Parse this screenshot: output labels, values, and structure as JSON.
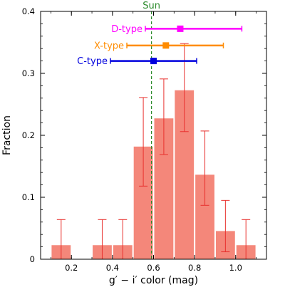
{
  "chart_data": {
    "type": "bar",
    "xlabel": "g′ − i′ color (mag)",
    "ylabel": "Fraction",
    "xlim": [
      0.05,
      1.15
    ],
    "ylim": [
      0,
      0.4
    ],
    "xticks": [
      0.2,
      0.4,
      0.6,
      0.8,
      1.0
    ],
    "xtick_labels": [
      "0.2",
      "0.4",
      "0.6",
      "0.8",
      "1.0"
    ],
    "yticks": [
      0,
      0.1,
      0.2,
      0.3,
      0.4
    ],
    "ytick_labels": [
      "0",
      "0.1",
      "0.2",
      "0.3",
      "0.4"
    ],
    "grid": false,
    "bar_color": "#f4877a",
    "errorbar_color": "#e8312e",
    "bins": [
      {
        "center": 0.15,
        "value": 0.0227,
        "err_low": 0.0227,
        "err_high": 0.0413
      },
      {
        "center": 0.25,
        "value": 0.0,
        "err_low": 0.0,
        "err_high": 0.0
      },
      {
        "center": 0.35,
        "value": 0.0227,
        "err_low": 0.0227,
        "err_high": 0.0413
      },
      {
        "center": 0.45,
        "value": 0.0227,
        "err_low": 0.0227,
        "err_high": 0.0413
      },
      {
        "center": 0.55,
        "value": 0.1818,
        "err_low": 0.0638,
        "err_high": 0.0792
      },
      {
        "center": 0.65,
        "value": 0.2273,
        "err_low": 0.0583,
        "err_high": 0.0637
      },
      {
        "center": 0.75,
        "value": 0.2727,
        "err_low": 0.0667,
        "err_high": 0.0753
      },
      {
        "center": 0.85,
        "value": 0.1364,
        "err_low": 0.0494,
        "err_high": 0.0706
      },
      {
        "center": 0.95,
        "value": 0.0455,
        "err_low": 0.0335,
        "err_high": 0.0495
      },
      {
        "center": 1.05,
        "value": 0.0227,
        "err_low": 0.0227,
        "err_high": 0.0413
      }
    ],
    "reference_line": {
      "label": "Sun",
      "x": 0.59,
      "color": "#2a8a2a"
    },
    "type_markers": [
      {
        "label": "D-type",
        "y": 0.372,
        "center": 0.73,
        "low": 0.56,
        "high": 1.03,
        "color": "#ff00ff"
      },
      {
        "label": "X-type",
        "y": 0.345,
        "center": 0.66,
        "low": 0.47,
        "high": 0.94,
        "color": "#ff8c00"
      },
      {
        "label": "C-type",
        "y": 0.32,
        "center": 0.6,
        "low": 0.39,
        "high": 0.81,
        "color": "#0000dd"
      }
    ]
  }
}
